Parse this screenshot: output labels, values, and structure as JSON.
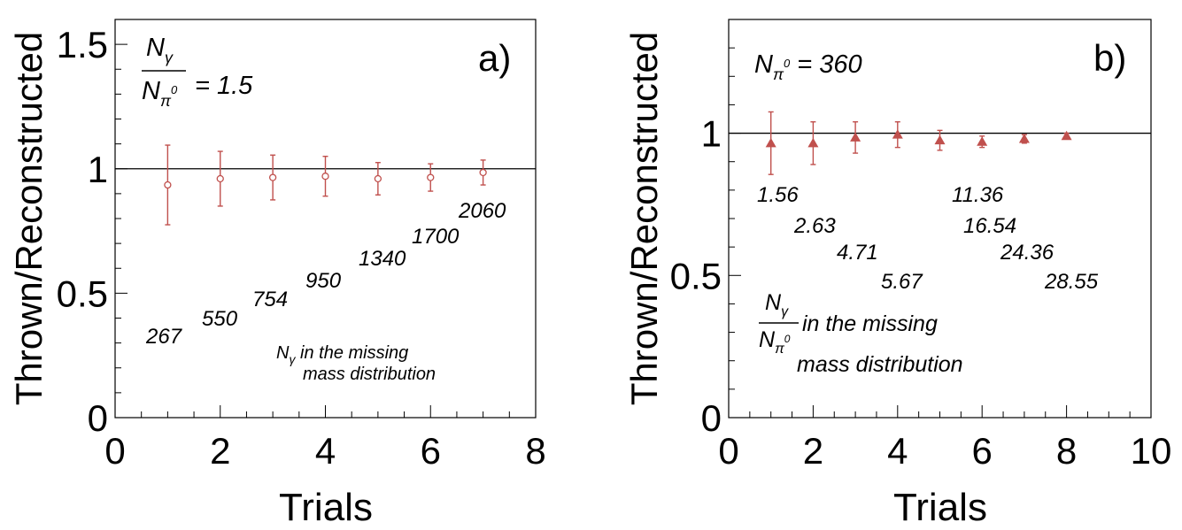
{
  "chart_data": [
    {
      "panel": "a)",
      "type": "scatter",
      "xlabel": "Trials",
      "ylabel": "Thrown/Reconstructed",
      "xlim": [
        0,
        8
      ],
      "ylim": [
        0,
        1.6
      ],
      "xticks": [
        0,
        2,
        4,
        6,
        8
      ],
      "yticks": [
        0,
        0.5,
        1,
        1.5
      ],
      "reference_line": 1,
      "color": "#c0504d",
      "marker": "open-circle",
      "ratio_label": {
        "num": "N",
        "num_sub": "γ",
        "den": "N",
        "den_sub": "π",
        "den_sup": "0",
        "value": "= 1.5"
      },
      "footnote": {
        "prefix": "N",
        "prefix_sub": "γ",
        "text1": " in the missing",
        "text2": "mass distribution"
      },
      "x": [
        1,
        2,
        3,
        4,
        5,
        6,
        7
      ],
      "y": [
        0.935,
        0.96,
        0.965,
        0.97,
        0.96,
        0.965,
        0.985
      ],
      "err_low": [
        0.16,
        0.11,
        0.09,
        0.08,
        0.065,
        0.055,
        0.05
      ],
      "err_high": [
        0.16,
        0.11,
        0.09,
        0.08,
        0.065,
        0.055,
        0.05
      ],
      "annotations": [
        "267",
        "550",
        "754",
        "950",
        "1340",
        "1700",
        "2060"
      ]
    },
    {
      "panel": "b)",
      "type": "scatter",
      "xlabel": "Trials",
      "ylabel": "Thrown/Reconstructed",
      "xlim": [
        0,
        10
      ],
      "ylim": [
        0,
        1.4
      ],
      "xticks": [
        0,
        2,
        4,
        6,
        8,
        10
      ],
      "yticks": [
        0,
        0.5,
        1
      ],
      "reference_line": 1,
      "color": "#c0504d",
      "marker": "filled-triangle",
      "top_label": {
        "text": "N",
        "sub": "π",
        "sup": "0",
        "value": " = 360"
      },
      "footnote": {
        "num": "N",
        "num_sub": "γ",
        "den": "N",
        "den_sub": "π",
        "den_sup": "0",
        "text1": " in the missing",
        "text2": "mass distribution"
      },
      "x": [
        1,
        2,
        3,
        4,
        5,
        6,
        7,
        8
      ],
      "y": [
        0.965,
        0.965,
        0.985,
        0.995,
        0.975,
        0.97,
        0.98,
        0.99
      ],
      "err_low": [
        0.11,
        0.075,
        0.055,
        0.045,
        0.035,
        0.02,
        0.015,
        0.01
      ],
      "err_high": [
        0.11,
        0.075,
        0.055,
        0.045,
        0.035,
        0.02,
        0.015,
        0.01
      ],
      "annotations": [
        "1.56",
        "2.63",
        "4.71",
        "5.67",
        "11.36",
        "16.54",
        "24.36",
        "28.55"
      ]
    }
  ]
}
